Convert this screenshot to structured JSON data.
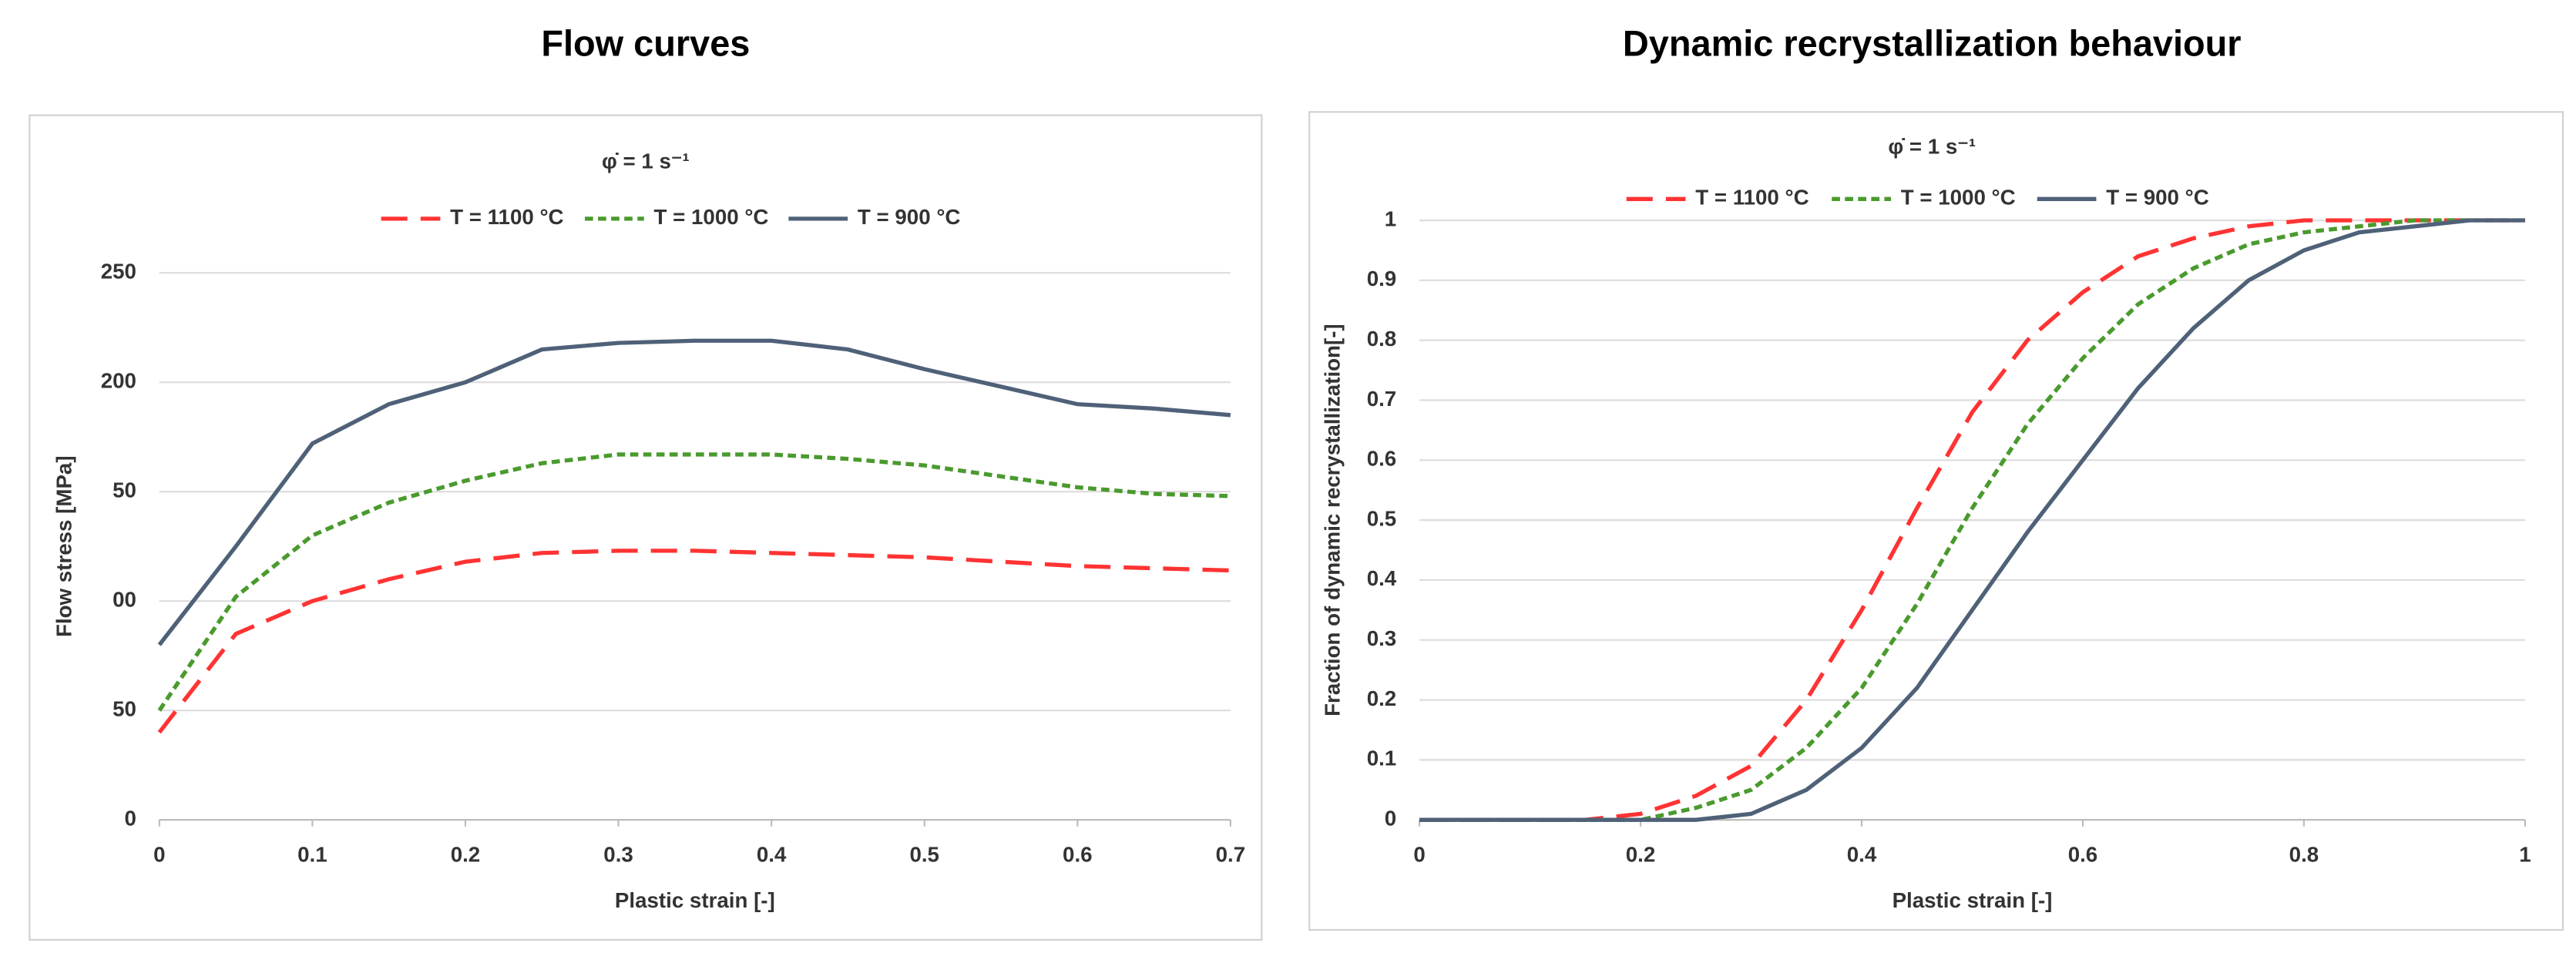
{
  "chart_data": [
    {
      "type": "line",
      "title": "Flow curves",
      "subtitle": "φ̇ = 1 s⁻¹",
      "xlabel": "Plastic strain [-]",
      "ylabel": "Flow stress  [MPa]",
      "x": [
        0,
        0.05,
        0.1,
        0.15,
        0.2,
        0.25,
        0.3,
        0.35,
        0.4,
        0.45,
        0.5,
        0.55,
        0.6,
        0.65,
        0.7
      ],
      "series": [
        {
          "name": "T = 1100 °C",
          "color": "#ff3333",
          "style": "dashed",
          "values": [
            40,
            85,
            100,
            110,
            118,
            122,
            123,
            123,
            122,
            121,
            120,
            118,
            116,
            115,
            114
          ]
        },
        {
          "name": "T = 1000 °C",
          "color": "#4a9a2e",
          "style": "dotted",
          "values": [
            50,
            102,
            130,
            145,
            155,
            163,
            167,
            167,
            167,
            165,
            162,
            157,
            152,
            149,
            148
          ]
        },
        {
          "name": "T = 900 °C",
          "color": "#4f6178",
          "style": "solid",
          "values": [
            80,
            125,
            172,
            190,
            200,
            215,
            218,
            219,
            219,
            215,
            206,
            198,
            190,
            188,
            185
          ]
        }
      ],
      "xlim": [
        0,
        0.7
      ],
      "xticks": [
        0,
        0.1,
        0.2,
        0.3,
        0.4,
        0.5,
        0.6,
        0.7
      ],
      "ylim": [
        0,
        250
      ],
      "yticks": [
        0,
        50,
        {
          "value": 100,
          "label": "00"
        },
        {
          "value": 150,
          "label": "50"
        },
        200,
        250
      ],
      "grid": true
    },
    {
      "type": "line",
      "title": "Dynamic recrystallization behaviour",
      "subtitle": "φ̇ = 1 s⁻¹",
      "xlabel": "Plastic strain [-]",
      "ylabel": "Fraction of dynamic recrystallization[-]",
      "x": [
        0,
        0.05,
        0.1,
        0.15,
        0.2,
        0.25,
        0.3,
        0.35,
        0.4,
        0.45,
        0.5,
        0.55,
        0.6,
        0.65,
        0.7,
        0.75,
        0.8,
        0.85,
        0.9,
        0.95,
        1
      ],
      "series": [
        {
          "name": "T = 1100 °C",
          "color": "#ff3333",
          "style": "dashed",
          "values": [
            0,
            0,
            0,
            0,
            0.01,
            0.04,
            0.09,
            0.2,
            0.35,
            0.52,
            0.68,
            0.8,
            0.88,
            0.94,
            0.97,
            0.99,
            1,
            1,
            1,
            1,
            1
          ]
        },
        {
          "name": "T = 1000 °C",
          "color": "#4a9a2e",
          "style": "dotted",
          "values": [
            0,
            0,
            0,
            0,
            0,
            0.02,
            0.05,
            0.12,
            0.22,
            0.36,
            0.52,
            0.66,
            0.77,
            0.86,
            0.92,
            0.96,
            0.98,
            0.99,
            1,
            1,
            1
          ]
        },
        {
          "name": "T = 900 °C",
          "color": "#4f6178",
          "style": "solid",
          "values": [
            0,
            0,
            0,
            0,
            0,
            0,
            0.01,
            0.05,
            0.12,
            0.22,
            0.35,
            0.48,
            0.6,
            0.72,
            0.82,
            0.9,
            0.95,
            0.98,
            0.99,
            1,
            1
          ]
        }
      ],
      "xlim": [
        0,
        1
      ],
      "xticks": [
        0,
        0.2,
        0.4,
        0.6,
        0.8,
        1
      ],
      "ylim": [
        0,
        1
      ],
      "yticks": [
        0,
        0.1,
        0.2,
        0.3,
        0.4,
        0.5,
        0.6,
        0.7,
        0.8,
        0.9,
        1
      ],
      "grid": true
    }
  ]
}
